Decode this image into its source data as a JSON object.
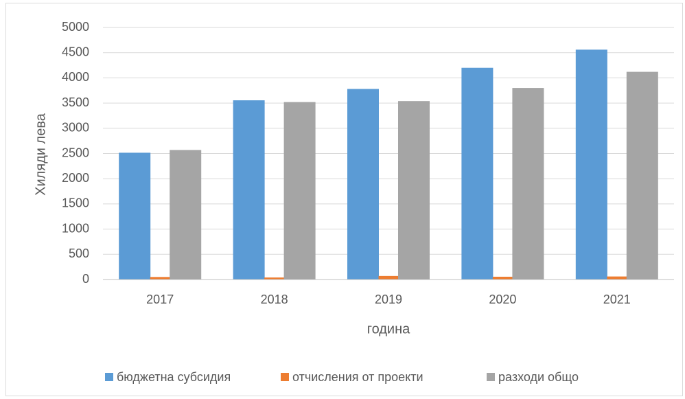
{
  "chart_data": {
    "type": "bar",
    "categories": [
      "2017",
      "2018",
      "2019",
      "2020",
      "2021"
    ],
    "series": [
      {
        "name": "бюджетна субсидия",
        "color": "#5b9bd5",
        "values": [
          2515,
          3555,
          3780,
          4200,
          4560
        ]
      },
      {
        "name": "отчисления от проекти",
        "color": "#ed7d31",
        "values": [
          50,
          40,
          70,
          55,
          60
        ]
      },
      {
        "name": "разходи общо",
        "color": "#a5a5a5",
        "values": [
          2570,
          3520,
          3540,
          3800,
          4120
        ]
      }
    ],
    "ylim": [
      0,
      5000
    ],
    "yticks": [
      0,
      500,
      1000,
      1500,
      2000,
      2500,
      3000,
      3500,
      4000,
      4500,
      5000
    ],
    "ylabel": "Хиляди лева",
    "xlabel": "година",
    "grid": true,
    "legend": "bottom"
  }
}
